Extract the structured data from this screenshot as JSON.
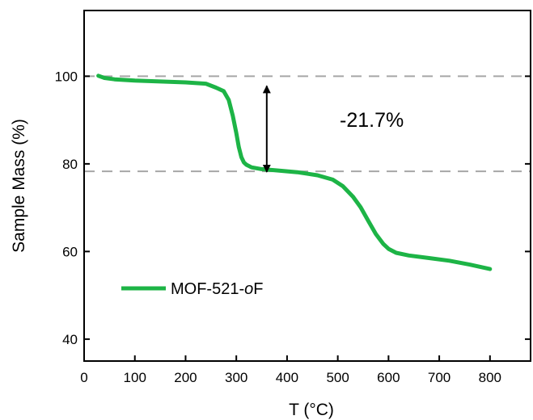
{
  "chart_data": {
    "type": "line",
    "xlabel": "T (°C)",
    "ylabel": "Sample Mass (%)",
    "xlim": [
      0,
      880
    ],
    "ylim": [
      35,
      115
    ],
    "xticks": [
      0,
      100,
      200,
      300,
      400,
      500,
      600,
      700,
      800
    ],
    "yticks": [
      40,
      60,
      80,
      100
    ],
    "grid": false,
    "legend": "lower-left",
    "series": [
      {
        "name": "MOF-521-",
        "name_italic": "o",
        "name_suffix": "F",
        "color": "#1db446",
        "x": [
          28,
          40,
          60,
          100,
          150,
          200,
          240,
          260,
          275,
          285,
          293,
          300,
          305,
          310,
          315,
          320,
          330,
          350,
          380,
          420,
          460,
          490,
          510,
          530,
          545,
          560,
          575,
          590,
          600,
          615,
          640,
          680,
          720,
          760,
          800
        ],
        "y": [
          100.1,
          99.6,
          99.3,
          99.0,
          98.8,
          98.6,
          98.3,
          97.4,
          96.6,
          94.6,
          91.0,
          87.0,
          83.8,
          81.5,
          80.3,
          79.8,
          79.2,
          78.8,
          78.5,
          78.1,
          77.4,
          76.4,
          74.9,
          72.5,
          70.1,
          67.0,
          64.0,
          61.7,
          60.6,
          59.7,
          59.1,
          58.5,
          57.9,
          57.0,
          56.0
        ]
      }
    ],
    "reference_lines": [
      100,
      78.3
    ],
    "arrow": {
      "x": 360,
      "y_from": 100,
      "y_to": 80
    },
    "annotation": "-21.7%"
  }
}
